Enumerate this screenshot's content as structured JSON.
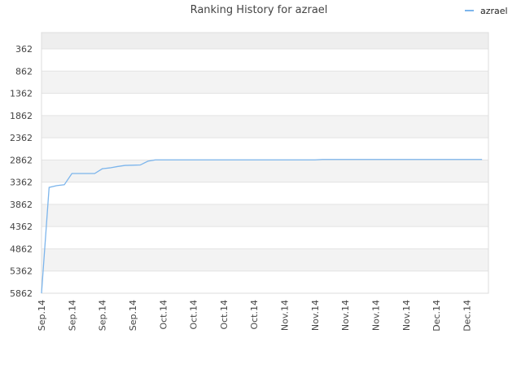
{
  "chart_data": {
    "type": "line",
    "title": "Ranking History for azrael",
    "categories": [
      "Sep.14",
      null,
      null,
      null,
      "Sep.14",
      null,
      null,
      null,
      "Sep.14",
      null,
      null,
      null,
      "Sep.14",
      null,
      null,
      null,
      "Oct.14",
      null,
      null,
      null,
      "Oct.14",
      null,
      null,
      null,
      "Oct.14",
      null,
      null,
      null,
      "Oct.14",
      null,
      null,
      null,
      "Nov.14",
      null,
      null,
      null,
      "Nov.14",
      null,
      null,
      null,
      "Nov.14",
      null,
      null,
      null,
      "Nov.14",
      null,
      null,
      null,
      "Nov.14",
      null,
      null,
      null,
      "Dec.14",
      null,
      null,
      null,
      "Dec.14",
      null,
      null
    ],
    "series": [
      {
        "name": "azrael",
        "color": "#7cb5ec",
        "values": [
          5862,
          3480,
          3440,
          3420,
          3167,
          3167,
          3167,
          3167,
          3060,
          3040,
          3010,
          2985,
          2980,
          2975,
          2890,
          2860,
          2860,
          2860,
          2860,
          2860,
          2860,
          2860,
          2860,
          2860,
          2860,
          2860,
          2860,
          2860,
          2860,
          2860,
          2860,
          2860,
          2860,
          2860,
          2860,
          2860,
          2860,
          2850,
          2850,
          2850,
          2850,
          2850,
          2850,
          2850,
          2850,
          2850,
          2850,
          2850,
          2850,
          2850,
          2850,
          2850,
          2850,
          2850,
          2850,
          2850,
          2850,
          2850,
          2850
        ]
      }
    ],
    "ylim": [
      5862,
      -5
    ],
    "yticks": [
      362,
      862,
      1362,
      1862,
      2362,
      2862,
      3362,
      3862,
      4362,
      4862,
      5362,
      5862
    ],
    "grid": true,
    "legend": "top-right"
  }
}
